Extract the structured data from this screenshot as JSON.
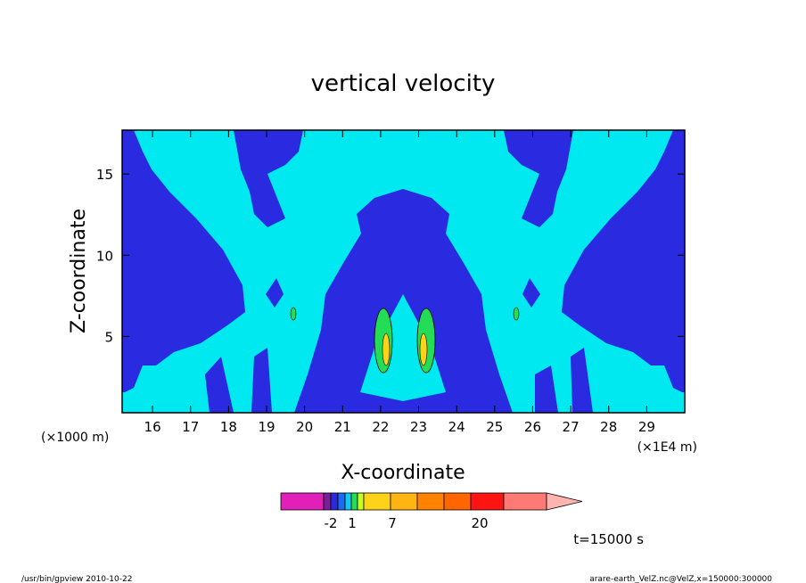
{
  "chart_data": {
    "type": "heatmap",
    "title": "vertical velocity",
    "xlabel": "X-coordinate",
    "ylabel": "Z-coordinate",
    "x_unit_left": "(×1000 m)",
    "x_unit_right": "(×1E4 m)",
    "xlim": [
      15.2,
      30.0
    ],
    "ylim": [
      0.3,
      17.7
    ],
    "x_ticks": [
      16,
      17,
      18,
      19,
      20,
      21,
      22,
      23,
      24,
      25,
      26,
      27,
      28,
      29
    ],
    "y_ticks": [
      5,
      10,
      15
    ],
    "colorbar": {
      "colors": [
        "#e020b8",
        "#7a1f9a",
        "#2a2bd8",
        "#1b6bf0",
        "#12c8f0",
        "#22dd55",
        "#c8ff20",
        "#ffd21a",
        "#ffb414",
        "#ff8200",
        "#ff6600",
        "#ff1414",
        "#ff7a74",
        "#ffb4b0"
      ],
      "tick_labels": [
        "-2",
        "1",
        "7",
        "20"
      ]
    },
    "annotation": "t=15000 s"
  },
  "footer": {
    "left": "/usr/bin/gpview   2010-10-22",
    "right": "arare-earth_VelZ.nc@VelZ,x=150000:300000"
  }
}
